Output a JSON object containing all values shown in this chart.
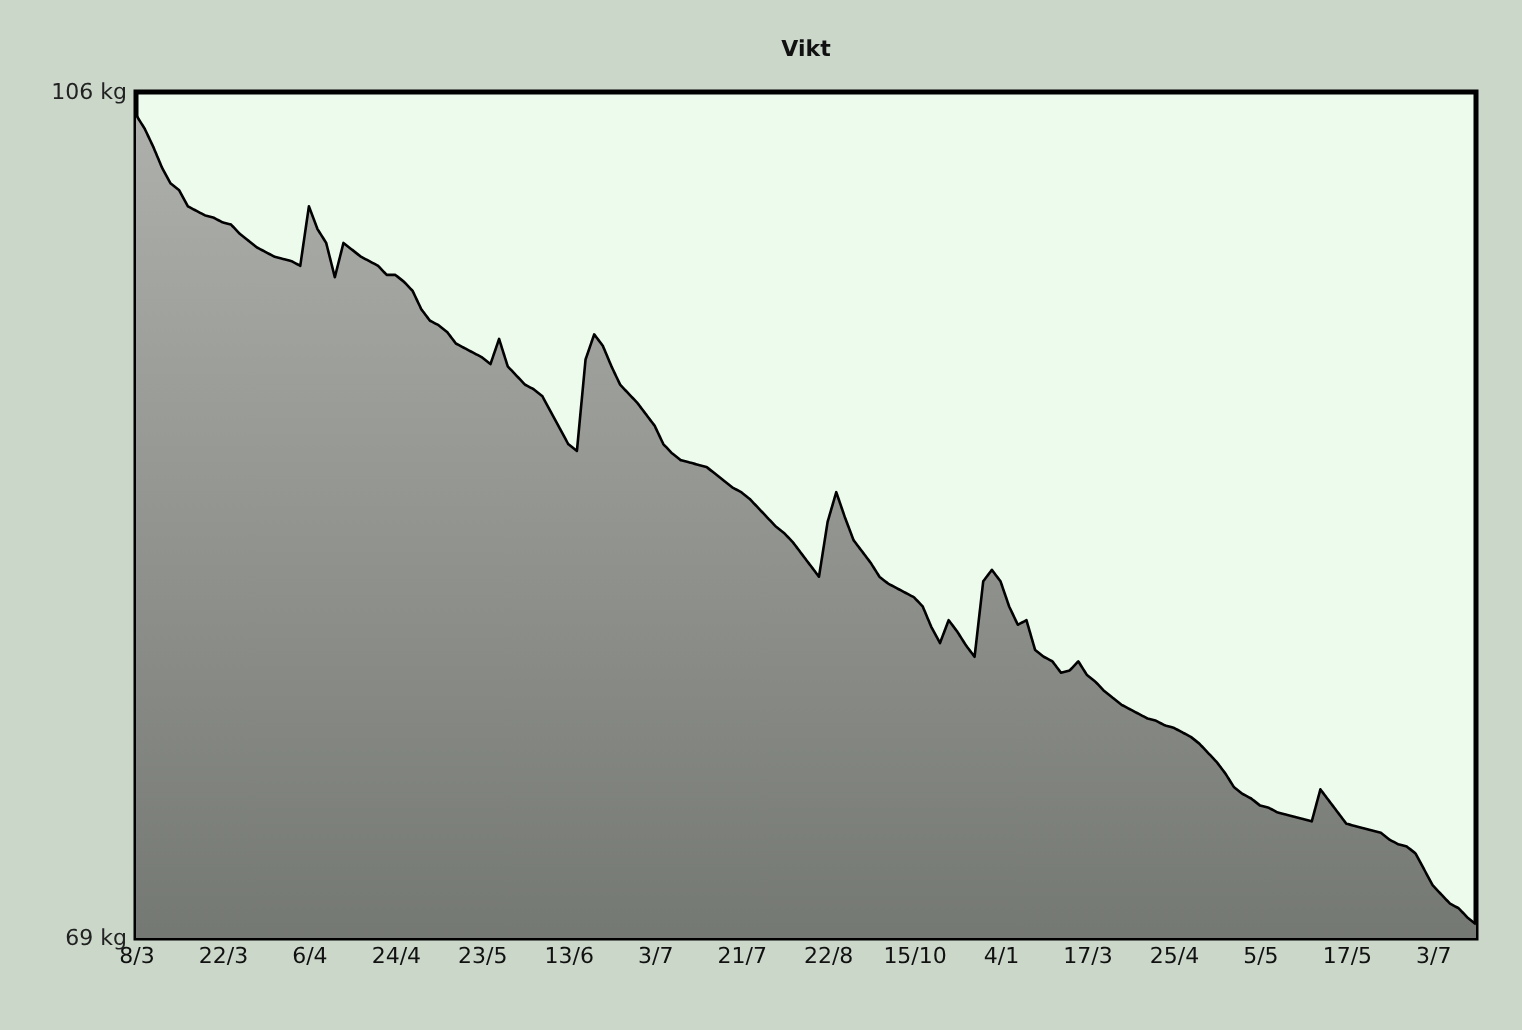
{
  "chart_data": {
    "type": "area",
    "title": "Vikt",
    "categories": [
      "8/3",
      null,
      null,
      null,
      null,
      null,
      null,
      null,
      null,
      null,
      "22/3",
      null,
      null,
      null,
      null,
      null,
      null,
      null,
      null,
      null,
      "6/4",
      null,
      null,
      null,
      null,
      null,
      null,
      null,
      null,
      null,
      "24/4",
      null,
      null,
      null,
      null,
      null,
      null,
      null,
      null,
      null,
      "23/5",
      null,
      null,
      null,
      null,
      null,
      null,
      null,
      null,
      null,
      "13/6",
      null,
      null,
      null,
      null,
      null,
      null,
      null,
      null,
      null,
      "3/7",
      null,
      null,
      null,
      null,
      null,
      null,
      null,
      null,
      null,
      "21/7",
      null,
      null,
      null,
      null,
      null,
      null,
      null,
      null,
      null,
      "22/8",
      null,
      null,
      null,
      null,
      null,
      null,
      null,
      null,
      null,
      "15/10",
      null,
      null,
      null,
      null,
      null,
      null,
      null,
      null,
      null,
      "4/1",
      null,
      null,
      null,
      null,
      null,
      null,
      null,
      null,
      null,
      "17/3",
      null,
      null,
      null,
      null,
      null,
      null,
      null,
      null,
      null,
      "25/4",
      null,
      null,
      null,
      null,
      null,
      null,
      null,
      null,
      null,
      "5/5",
      null,
      null,
      null,
      null,
      null,
      null,
      null,
      null,
      null,
      "17/5",
      null,
      null,
      null,
      null,
      null,
      null,
      null,
      null,
      null,
      "3/7",
      null,
      null,
      null,
      null,
      null
    ],
    "values": [
      105.0,
      104.4,
      103.6,
      102.7,
      102.0,
      101.7,
      101.0,
      100.8,
      100.6,
      100.5,
      100.3,
      100.2,
      99.8,
      99.5,
      99.2,
      99.0,
      98.8,
      98.7,
      98.6,
      98.4,
      101.0,
      100.0,
      99.4,
      97.9,
      99.4,
      99.1,
      98.8,
      98.6,
      98.4,
      98.0,
      98.0,
      97.7,
      97.3,
      96.5,
      96.0,
      95.8,
      95.5,
      95.0,
      94.8,
      94.6,
      94.4,
      94.1,
      95.2,
      94.0,
      93.6,
      93.2,
      93.0,
      92.7,
      92.0,
      91.3,
      90.6,
      90.3,
      94.3,
      95.4,
      94.9,
      94.0,
      93.2,
      92.8,
      92.4,
      91.9,
      91.4,
      90.6,
      90.2,
      89.9,
      89.8,
      89.7,
      89.6,
      89.3,
      89.0,
      88.7,
      88.5,
      88.2,
      87.8,
      87.4,
      87.0,
      86.7,
      86.3,
      85.8,
      85.3,
      84.8,
      87.2,
      88.5,
      87.4,
      86.4,
      85.9,
      85.4,
      84.8,
      84.5,
      84.3,
      84.1,
      83.9,
      83.5,
      82.6,
      81.9,
      82.9,
      82.4,
      81.8,
      81.3,
      84.6,
      85.1,
      84.6,
      83.5,
      82.7,
      82.9,
      81.6,
      81.3,
      81.1,
      80.6,
      80.7,
      81.1,
      80.5,
      80.2,
      79.8,
      79.5,
      79.2,
      79.0,
      78.8,
      78.6,
      78.5,
      78.3,
      78.2,
      78.0,
      77.8,
      77.5,
      77.1,
      76.7,
      76.2,
      75.6,
      75.3,
      75.1,
      74.8,
      74.7,
      74.5,
      74.4,
      74.3,
      74.2,
      74.1,
      75.5,
      75.0,
      74.5,
      74.0,
      73.9,
      73.8,
      73.7,
      73.6,
      73.3,
      73.1,
      73.0,
      72.7,
      72.0,
      71.3,
      70.9,
      70.5,
      70.3,
      69.9,
      69.6
    ],
    "color": "#6b6f69",
    "ylim": [
      69,
      106
    ],
    "yticks": [
      {
        "value": 106,
        "label": "106 kg"
      },
      {
        "value": 69,
        "label": "69 kg"
      }
    ]
  }
}
